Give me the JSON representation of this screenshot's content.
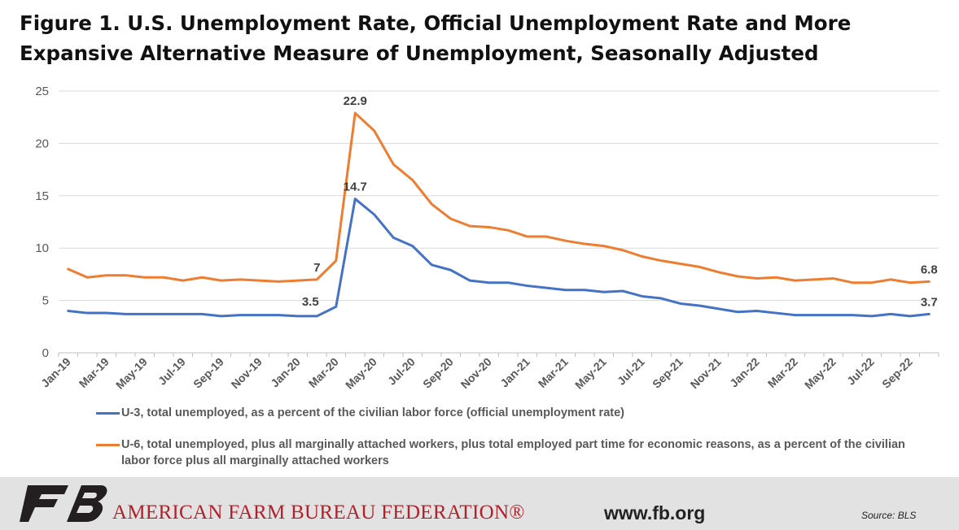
{
  "chart_data": {
    "type": "line",
    "title": "Figure 1. U.S. Unemployment Rate, Official Unemployment Rate and More Expansive Alternative Measure of Unemployment, Seasonally Adjusted",
    "x": [
      "Jan-19",
      "Feb-19",
      "Mar-19",
      "Apr-19",
      "May-19",
      "Jun-19",
      "Jul-19",
      "Aug-19",
      "Sep-19",
      "Oct-19",
      "Nov-19",
      "Dec-19",
      "Jan-20",
      "Feb-20",
      "Mar-20",
      "Apr-20",
      "May-20",
      "Jun-20",
      "Jul-20",
      "Aug-20",
      "Sep-20",
      "Oct-20",
      "Nov-20",
      "Dec-20",
      "Jan-21",
      "Feb-21",
      "Mar-21",
      "Apr-21",
      "May-21",
      "Jun-21",
      "Jul-21",
      "Aug-21",
      "Sep-21",
      "Oct-21",
      "Nov-21",
      "Dec-21",
      "Jan-22",
      "Feb-22",
      "Mar-22",
      "Apr-22",
      "May-22",
      "Jun-22",
      "Jul-22",
      "Aug-22",
      "Sep-22",
      "Oct-22"
    ],
    "x_tick_labels": [
      "Jan-19",
      "Mar-19",
      "May-19",
      "Jul-19",
      "Sep-19",
      "Nov-19",
      "Jan-20",
      "Mar-20",
      "May-20",
      "Jul-20",
      "Sep-20",
      "Nov-20",
      "Jan-21",
      "Mar-21",
      "May-21",
      "Jul-21",
      "Sep-21",
      "Nov-21",
      "Jan-22",
      "Mar-22",
      "May-22",
      "Jul-22",
      "Sep-22"
    ],
    "y_ticks": [
      0,
      5,
      10,
      15,
      20,
      25
    ],
    "ylim": [
      0,
      25
    ],
    "grid": "horizontal",
    "legend_position": "bottom",
    "series": [
      {
        "name": "U-3, total unemployed, as a percent of the civilian labor force (official unemployment rate)",
        "color": "#4472c4",
        "values": [
          4.0,
          3.8,
          3.8,
          3.7,
          3.7,
          3.7,
          3.7,
          3.7,
          3.5,
          3.6,
          3.6,
          3.6,
          3.5,
          3.5,
          4.4,
          14.7,
          13.2,
          11.0,
          10.2,
          8.4,
          7.9,
          6.9,
          6.7,
          6.7,
          6.4,
          6.2,
          6.0,
          6.0,
          5.8,
          5.9,
          5.4,
          5.2,
          4.7,
          4.5,
          4.2,
          3.9,
          4.0,
          3.8,
          3.6,
          3.6,
          3.6,
          3.6,
          3.5,
          3.7,
          3.5,
          3.7
        ]
      },
      {
        "name": "U-6, total unemployed, plus all marginally attached workers, plus total employed part time for economic reasons, as a percent of the civilian labor force plus all marginally attached workers",
        "color": "#ed7d31",
        "values": [
          8.0,
          7.2,
          7.4,
          7.4,
          7.2,
          7.2,
          6.9,
          7.2,
          6.9,
          7.0,
          6.9,
          6.8,
          6.9,
          7.0,
          8.8,
          22.9,
          21.2,
          18.0,
          16.5,
          14.2,
          12.8,
          12.1,
          12.0,
          11.7,
          11.1,
          11.1,
          10.7,
          10.4,
          10.2,
          9.8,
          9.2,
          8.8,
          8.5,
          8.2,
          7.7,
          7.3,
          7.1,
          7.2,
          6.9,
          7.0,
          7.1,
          6.7,
          6.7,
          7.0,
          6.7,
          6.8
        ]
      }
    ],
    "annotations": [
      {
        "text": "22.9",
        "series": 1,
        "index": 15,
        "side": "above"
      },
      {
        "text": "7",
        "series": 1,
        "index": 13,
        "side": "above"
      },
      {
        "text": "14.7",
        "series": 0,
        "index": 15,
        "side": "above"
      },
      {
        "text": "3.5",
        "series": 0,
        "index": 13,
        "side": "above-left"
      },
      {
        "text": "6.8",
        "series": 1,
        "index": 45,
        "side": "above"
      },
      {
        "text": "3.7",
        "series": 0,
        "index": 45,
        "side": "above"
      }
    ]
  },
  "footer": {
    "org_name": "AMERICAN FARM BUREAU FEDERATION®",
    "website": "www.fb.org",
    "source": "Source: BLS",
    "logo_text": "FB",
    "logo_color": "#231f20",
    "org_color": "#b2202a"
  },
  "colors": {
    "grid": "#d9d9d9",
    "axis": "#bfbfbf",
    "footer_bg": "#e2e2e2"
  }
}
